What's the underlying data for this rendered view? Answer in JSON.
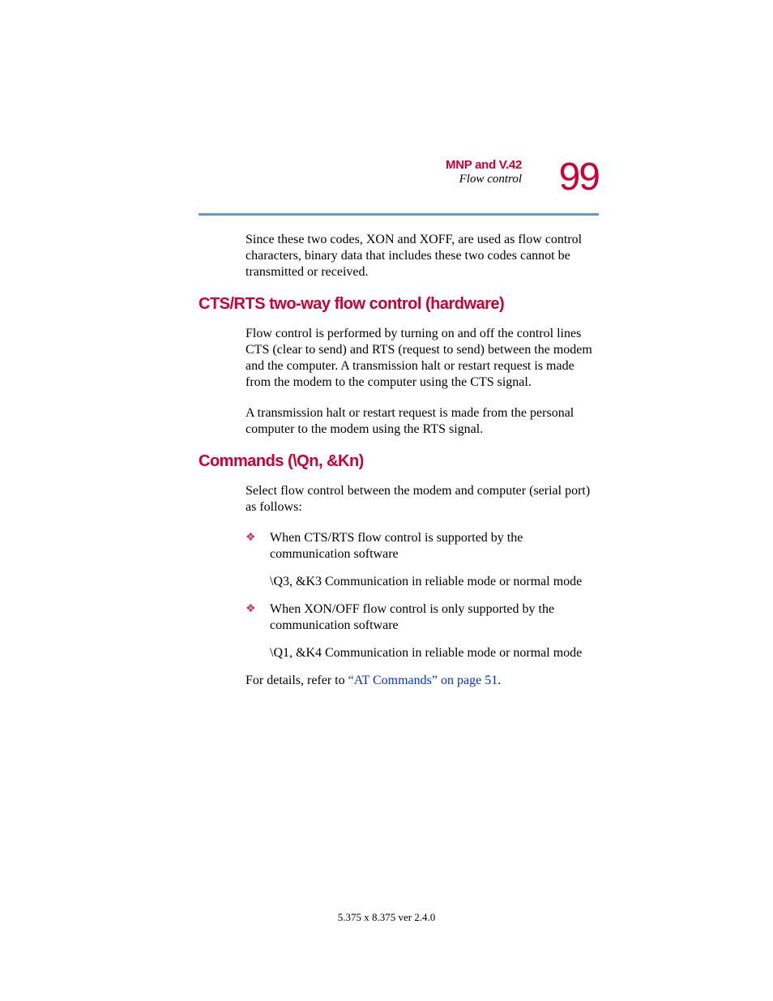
{
  "header": {
    "chapter_title": "MNP and V.42",
    "section_subtitle": "Flow control",
    "page_number": "99"
  },
  "colors": {
    "accent_red": "#cc0033",
    "divider_blue": "#6699cc",
    "link_blue": "#0033cc",
    "bullet_red": "#cc3366",
    "text_black": "#000000",
    "background": "#ffffff"
  },
  "typography": {
    "heading_font": "Arial",
    "body_font": "Times New Roman",
    "page_number_size": 48,
    "heading_size": 20,
    "body_size": 16,
    "footer_size": 13
  },
  "intro_paragraph": "Since these two codes, XON and XOFF, are used as flow control characters, binary data that includes these two codes cannot be transmitted or received.",
  "sections": [
    {
      "heading": "CTS/RTS two-way flow control (hardware)",
      "paragraphs": [
        "Flow control is performed by turning on and off the control lines CTS (clear to send) and RTS (request to send) between the modem and the computer. A transmission halt or restart request is made from the modem to the computer using the CTS signal.",
        "A transmission halt or restart request is made from the personal computer to the modem using the RTS signal."
      ]
    },
    {
      "heading": "Commands (\\Qn, &Kn)",
      "paragraphs": [
        "Select flow control between the modem and computer (serial port) as follows:"
      ],
      "bullets": [
        {
          "main": "When CTS/RTS flow control is supported by the communication software",
          "sub": "\\Q3, &K3 Communication in reliable mode or normal mode"
        },
        {
          "main": "When XON/OFF flow control is only supported by the communication software",
          "sub": "\\Q1, &K4 Communication in reliable mode or normal mode"
        }
      ],
      "closing_prefix": "For details, refer to ",
      "closing_link": "“AT Commands” on page 51",
      "closing_suffix": "."
    }
  ],
  "footer": "5.375 x 8.375 ver 2.4.0"
}
